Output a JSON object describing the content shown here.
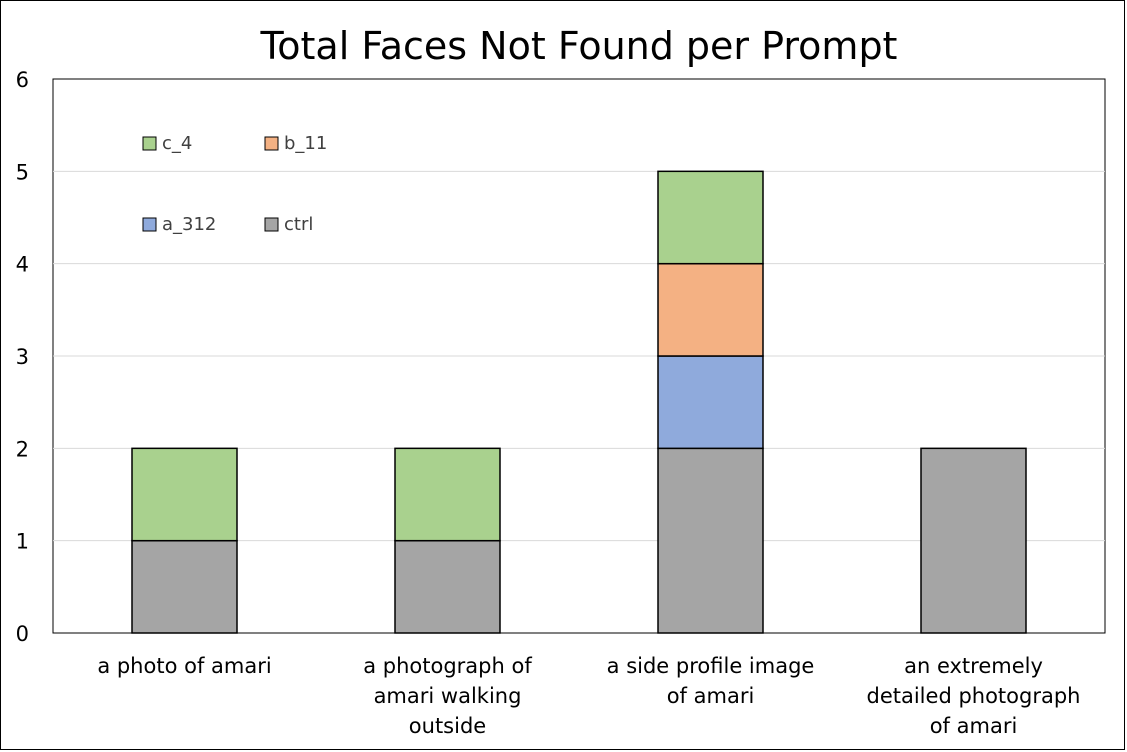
{
  "chart_data": {
    "type": "bar",
    "stacked": true,
    "title": "Total Faces Not Found per Prompt",
    "xlabel": "",
    "ylabel": "",
    "ylim": [
      0,
      6
    ],
    "yticks": [
      0,
      1,
      2,
      3,
      4,
      5,
      6
    ],
    "grid": true,
    "legend_position": "top-left",
    "categories": [
      "a photo of amari",
      "a photograph of amari walking outside",
      "a side profile image of amari",
      "an extremely detailed photograph of amari"
    ],
    "category_lines": [
      [
        "a photo of amari"
      ],
      [
        "a photograph of",
        "amari walking",
        "outside"
      ],
      [
        "a side profile image",
        "of amari"
      ],
      [
        "an extremely",
        "detailed photograph",
        "of amari"
      ]
    ],
    "series": [
      {
        "name": "ctrl",
        "color": "#a5a5a5",
        "values": [
          1,
          1,
          2,
          2
        ]
      },
      {
        "name": "a_312",
        "color": "#8faadc",
        "values": [
          0,
          0,
          1,
          0
        ]
      },
      {
        "name": "b_11",
        "color": "#f4b183",
        "values": [
          0,
          0,
          1,
          0
        ]
      },
      {
        "name": "c_4",
        "color": "#a9d18e",
        "values": [
          1,
          1,
          1,
          0
        ]
      }
    ],
    "legend_order": [
      "c_4",
      "b_11",
      "a_312",
      "ctrl"
    ]
  }
}
